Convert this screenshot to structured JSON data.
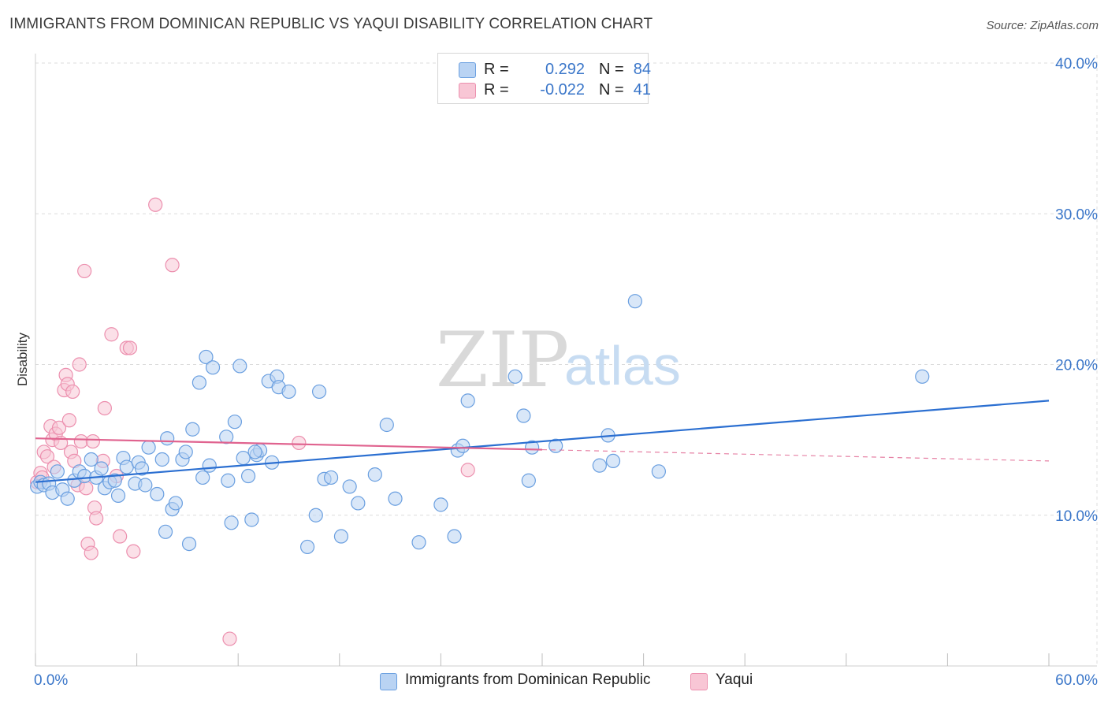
{
  "title": "IMMIGRANTS FROM DOMINICAN REPUBLIC VS YAQUI DISABILITY CORRELATION CHART",
  "source": "Source: ZipAtlas.com",
  "watermark": {
    "zip": "ZIP",
    "atlas": "atlas"
  },
  "legend": {
    "series1": {
      "r_label": "R =",
      "r_value": "0.292",
      "n_label": "N =",
      "n_value": "84"
    },
    "series2": {
      "r_label": "R =",
      "r_value": "-0.022",
      "n_label": "N =",
      "n_value": "41"
    }
  },
  "bottom_legend": {
    "series1": "Immigrants from Dominican Republic",
    "series2": "Yaqui"
  },
  "colors": {
    "blue_fill": "#b9d3f3",
    "blue_stroke": "#6a9fe0",
    "blue_line": "#2b6fd1",
    "pink_fill": "#f8c6d5",
    "pink_stroke": "#ec8fae",
    "pink_line": "#e0638f",
    "grid": "#dcdcdc",
    "tick_text": "#3a76c9"
  },
  "chart_data": {
    "type": "scatter",
    "title": "IMMIGRANTS FROM DOMINICAN REPUBLIC VS YAQUI DISABILITY CORRELATION CHART",
    "xlabel": "",
    "ylabel": "Disability",
    "xlim": [
      0,
      60
    ],
    "ylim": [
      0,
      40
    ],
    "x_tick_labels": [
      "0.0%",
      "60.0%"
    ],
    "y_ticks": [
      10,
      20,
      30,
      40
    ],
    "y_tick_labels": [
      "10.0%",
      "20.0%",
      "30.0%",
      "40.0%"
    ],
    "series": [
      {
        "name": "Immigrants from Dominican Republic",
        "color": "blue",
        "trend": {
          "x0": 0,
          "y0": 12.2,
          "x1": 60,
          "y1": 17.6,
          "dashed_from": null
        },
        "points": [
          [
            0.1,
            11.9
          ],
          [
            0.3,
            12.2
          ],
          [
            0.5,
            12.0
          ],
          [
            0.8,
            12.1
          ],
          [
            1.0,
            11.5
          ],
          [
            1.3,
            12.9
          ],
          [
            1.6,
            11.7
          ],
          [
            1.9,
            11.1
          ],
          [
            2.3,
            12.3
          ],
          [
            2.6,
            12.9
          ],
          [
            2.9,
            12.6
          ],
          [
            3.3,
            13.7
          ],
          [
            3.6,
            12.5
          ],
          [
            3.9,
            13.1
          ],
          [
            4.1,
            11.8
          ],
          [
            4.4,
            12.2
          ],
          [
            4.7,
            12.3
          ],
          [
            4.9,
            11.3
          ],
          [
            5.2,
            13.8
          ],
          [
            5.4,
            13.2
          ],
          [
            5.9,
            12.1
          ],
          [
            6.1,
            13.5
          ],
          [
            6.3,
            13.1
          ],
          [
            6.5,
            12.0
          ],
          [
            6.7,
            14.5
          ],
          [
            7.2,
            11.4
          ],
          [
            7.5,
            13.7
          ],
          [
            7.7,
            8.9
          ],
          [
            7.8,
            15.1
          ],
          [
            8.1,
            10.4
          ],
          [
            8.3,
            10.8
          ],
          [
            8.7,
            13.7
          ],
          [
            8.9,
            14.2
          ],
          [
            9.1,
            8.1
          ],
          [
            9.3,
            15.7
          ],
          [
            9.7,
            18.8
          ],
          [
            9.9,
            12.5
          ],
          [
            10.1,
            20.5
          ],
          [
            10.3,
            13.3
          ],
          [
            10.5,
            19.8
          ],
          [
            11.3,
            15.2
          ],
          [
            11.4,
            12.3
          ],
          [
            11.6,
            9.5
          ],
          [
            11.8,
            16.2
          ],
          [
            12.1,
            19.9
          ],
          [
            12.3,
            13.8
          ],
          [
            12.6,
            12.6
          ],
          [
            12.8,
            9.7
          ],
          [
            13.1,
            14.0
          ],
          [
            13.3,
            14.3
          ],
          [
            13.8,
            18.9
          ],
          [
            14.0,
            13.5
          ],
          [
            14.3,
            19.2
          ],
          [
            14.4,
            18.5
          ],
          [
            15.0,
            18.2
          ],
          [
            16.1,
            7.9
          ],
          [
            16.6,
            10.0
          ],
          [
            16.8,
            18.2
          ],
          [
            17.1,
            12.4
          ],
          [
            17.5,
            12.5
          ],
          [
            18.1,
            8.6
          ],
          [
            18.6,
            11.9
          ],
          [
            19.1,
            10.8
          ],
          [
            20.1,
            12.7
          ],
          [
            20.8,
            16.0
          ],
          [
            21.3,
            11.1
          ],
          [
            22.7,
            8.2
          ],
          [
            24.0,
            10.7
          ],
          [
            24.8,
            8.6
          ],
          [
            25.0,
            14.3
          ],
          [
            25.3,
            14.6
          ],
          [
            25.6,
            17.6
          ],
          [
            28.4,
            19.2
          ],
          [
            28.9,
            16.6
          ],
          [
            29.2,
            12.3
          ],
          [
            29.4,
            14.5
          ],
          [
            30.8,
            14.6
          ],
          [
            33.4,
            13.3
          ],
          [
            33.9,
            15.3
          ],
          [
            34.2,
            13.6
          ],
          [
            35.5,
            24.2
          ],
          [
            36.9,
            12.9
          ],
          [
            52.5,
            19.2
          ],
          [
            13.0,
            14.2
          ]
        ]
      },
      {
        "name": "Yaqui",
        "color": "pink",
        "trend": {
          "x0": 0,
          "y0": 15.1,
          "x1": 60,
          "y1": 13.6,
          "dashed_from": 30
        },
        "points": [
          [
            0.1,
            12.2
          ],
          [
            0.3,
            12.8
          ],
          [
            0.5,
            14.2
          ],
          [
            0.7,
            13.9
          ],
          [
            0.9,
            15.9
          ],
          [
            1.0,
            15.0
          ],
          [
            1.2,
            15.4
          ],
          [
            1.4,
            15.8
          ],
          [
            1.5,
            14.8
          ],
          [
            1.7,
            18.3
          ],
          [
            1.8,
            19.3
          ],
          [
            1.9,
            18.7
          ],
          [
            2.1,
            14.2
          ],
          [
            2.2,
            18.2
          ],
          [
            2.3,
            13.6
          ],
          [
            2.5,
            12.0
          ],
          [
            2.6,
            20.0
          ],
          [
            2.7,
            14.9
          ],
          [
            3.0,
            11.8
          ],
          [
            3.1,
            8.1
          ],
          [
            3.3,
            7.5
          ],
          [
            3.4,
            14.9
          ],
          [
            3.5,
            10.5
          ],
          [
            3.6,
            9.8
          ],
          [
            2.9,
            26.2
          ],
          [
            4.0,
            13.6
          ],
          [
            4.1,
            17.1
          ],
          [
            4.5,
            22.0
          ],
          [
            4.8,
            12.6
          ],
          [
            5.0,
            8.6
          ],
          [
            5.4,
            21.1
          ],
          [
            5.6,
            21.1
          ],
          [
            5.8,
            7.6
          ],
          [
            7.1,
            30.6
          ],
          [
            8.1,
            26.6
          ],
          [
            11.5,
            1.8
          ],
          [
            15.6,
            14.8
          ],
          [
            25.6,
            13.0
          ],
          [
            0.4,
            12.5
          ],
          [
            1.1,
            13.2
          ],
          [
            2.0,
            16.3
          ]
        ]
      }
    ]
  }
}
